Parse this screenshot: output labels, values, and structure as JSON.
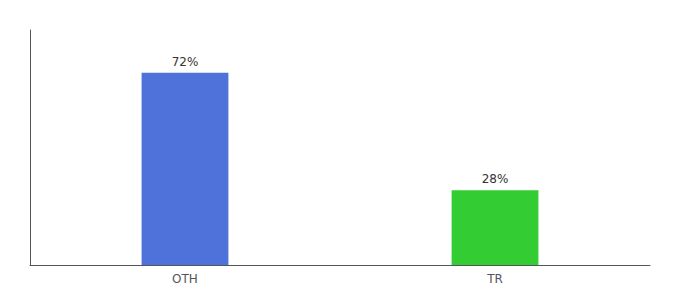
{
  "chart_data": {
    "type": "bar",
    "categories": [
      "OTH",
      "TR"
    ],
    "values": [
      72,
      28
    ],
    "value_labels": [
      "72%",
      "28%"
    ],
    "colors": [
      "#4e72d9",
      "#33cc33"
    ],
    "ylim": [
      0,
      88
    ],
    "grid": false,
    "data_labels": true,
    "tick_labels": "x"
  }
}
